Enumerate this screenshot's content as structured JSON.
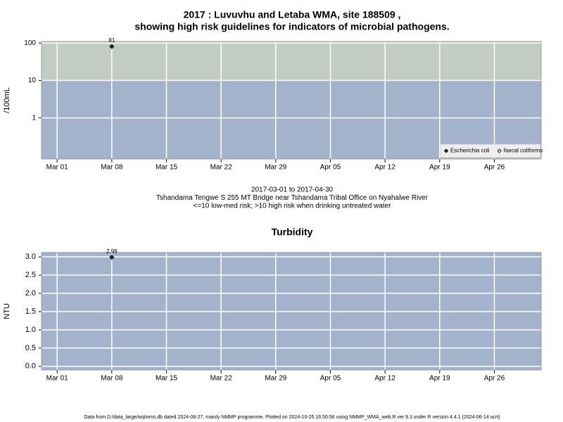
{
  "chart_data": [
    {
      "type": "scatter",
      "title": [
        "2017 : Luvuvhu and Letaba WMA, site 188509 ,",
        "showing high risk guidelines for indicators of microbial pathogens."
      ],
      "notes": [
        "2017-03-01 to 2017-04-30",
        "Tshandama Tengwe S 255 MT Bridge near Tshandama Tribal Office on Nyahalwe River",
        "<=10 low-med risk; >10 high risk when drinking untreated water"
      ],
      "ylabel": "/100mL",
      "log_scale": true,
      "ylim": [
        0.08,
        110
      ],
      "yticks": [
        1,
        10,
        100
      ],
      "xlim": [
        "2017-02-27",
        "2017-05-02"
      ],
      "xticks": [
        {
          "value": "2017-03-01",
          "label": "Mar 01"
        },
        {
          "value": "2017-03-08",
          "label": "Mar 08"
        },
        {
          "value": "2017-03-15",
          "label": "Mar 15"
        },
        {
          "value": "2017-03-22",
          "label": "Mar 22"
        },
        {
          "value": "2017-03-29",
          "label": "Mar 29"
        },
        {
          "value": "2017-04-05",
          "label": "Apr 05"
        },
        {
          "value": "2017-04-12",
          "label": "Apr 12"
        },
        {
          "value": "2017-04-19",
          "label": "Apr 19"
        },
        {
          "value": "2017-04-26",
          "label": "Apr 26"
        }
      ],
      "grid": true,
      "threshold": 10,
      "band_colors": [
        "#a3b3cc",
        "#c2ccc2"
      ],
      "legend": "bottom-right",
      "x": [
        "2017-03-08"
      ],
      "series": [
        {
          "name": "Escherichia coli",
          "color": "#222222",
          "open": false,
          "values": [
            81
          ],
          "value_labels": [
            "81"
          ]
        },
        {
          "name": "faecal coliforms",
          "color": "#222222",
          "open": true,
          "values": [
            null
          ],
          "value_labels": [
            null
          ]
        }
      ]
    },
    {
      "type": "scatter",
      "title": [
        "Turbidity"
      ],
      "ylabel": "NTU",
      "log_scale": false,
      "ylim": [
        -0.1,
        3.12
      ],
      "yticks": [
        {
          "value": 0,
          "label": "0.0"
        },
        {
          "value": 0.5,
          "label": "0.5"
        },
        {
          "value": 1,
          "label": "1.0"
        },
        {
          "value": 1.5,
          "label": "1.5"
        },
        {
          "value": 2,
          "label": "2.0"
        },
        {
          "value": 2.5,
          "label": "2.5"
        },
        {
          "value": 3,
          "label": "3.0"
        }
      ],
      "xlim": [
        "2017-02-27",
        "2017-05-02"
      ],
      "xticks": [
        {
          "value": "2017-03-01",
          "label": "Mar 01"
        },
        {
          "value": "2017-03-08",
          "label": "Mar 08"
        },
        {
          "value": "2017-03-15",
          "label": "Mar 15"
        },
        {
          "value": "2017-03-22",
          "label": "Mar 22"
        },
        {
          "value": "2017-03-29",
          "label": "Mar 29"
        },
        {
          "value": "2017-04-05",
          "label": "Apr 05"
        },
        {
          "value": "2017-04-12",
          "label": "Apr 12"
        },
        {
          "value": "2017-04-19",
          "label": "Apr 19"
        },
        {
          "value": "2017-04-26",
          "label": "Apr 26"
        }
      ],
      "grid": true,
      "band_colors": [
        "#a3b3cc"
      ],
      "x": [
        "2017-03-08"
      ],
      "series": [
        {
          "name": "Turbidity",
          "color": "#222222",
          "open": false,
          "values": [
            2.99
          ],
          "value_labels": [
            "2.99"
          ]
        }
      ]
    }
  ],
  "footer": "Data from D:/data_large/wq/wms.db dated 2024-08-27, mainly NMMP programme. Plotted on 2024-10-25 16:50:56 using NMMP_WMA_web.R ver 9.3 under R version 4.4.1 (2024-06-14 ucrt)"
}
